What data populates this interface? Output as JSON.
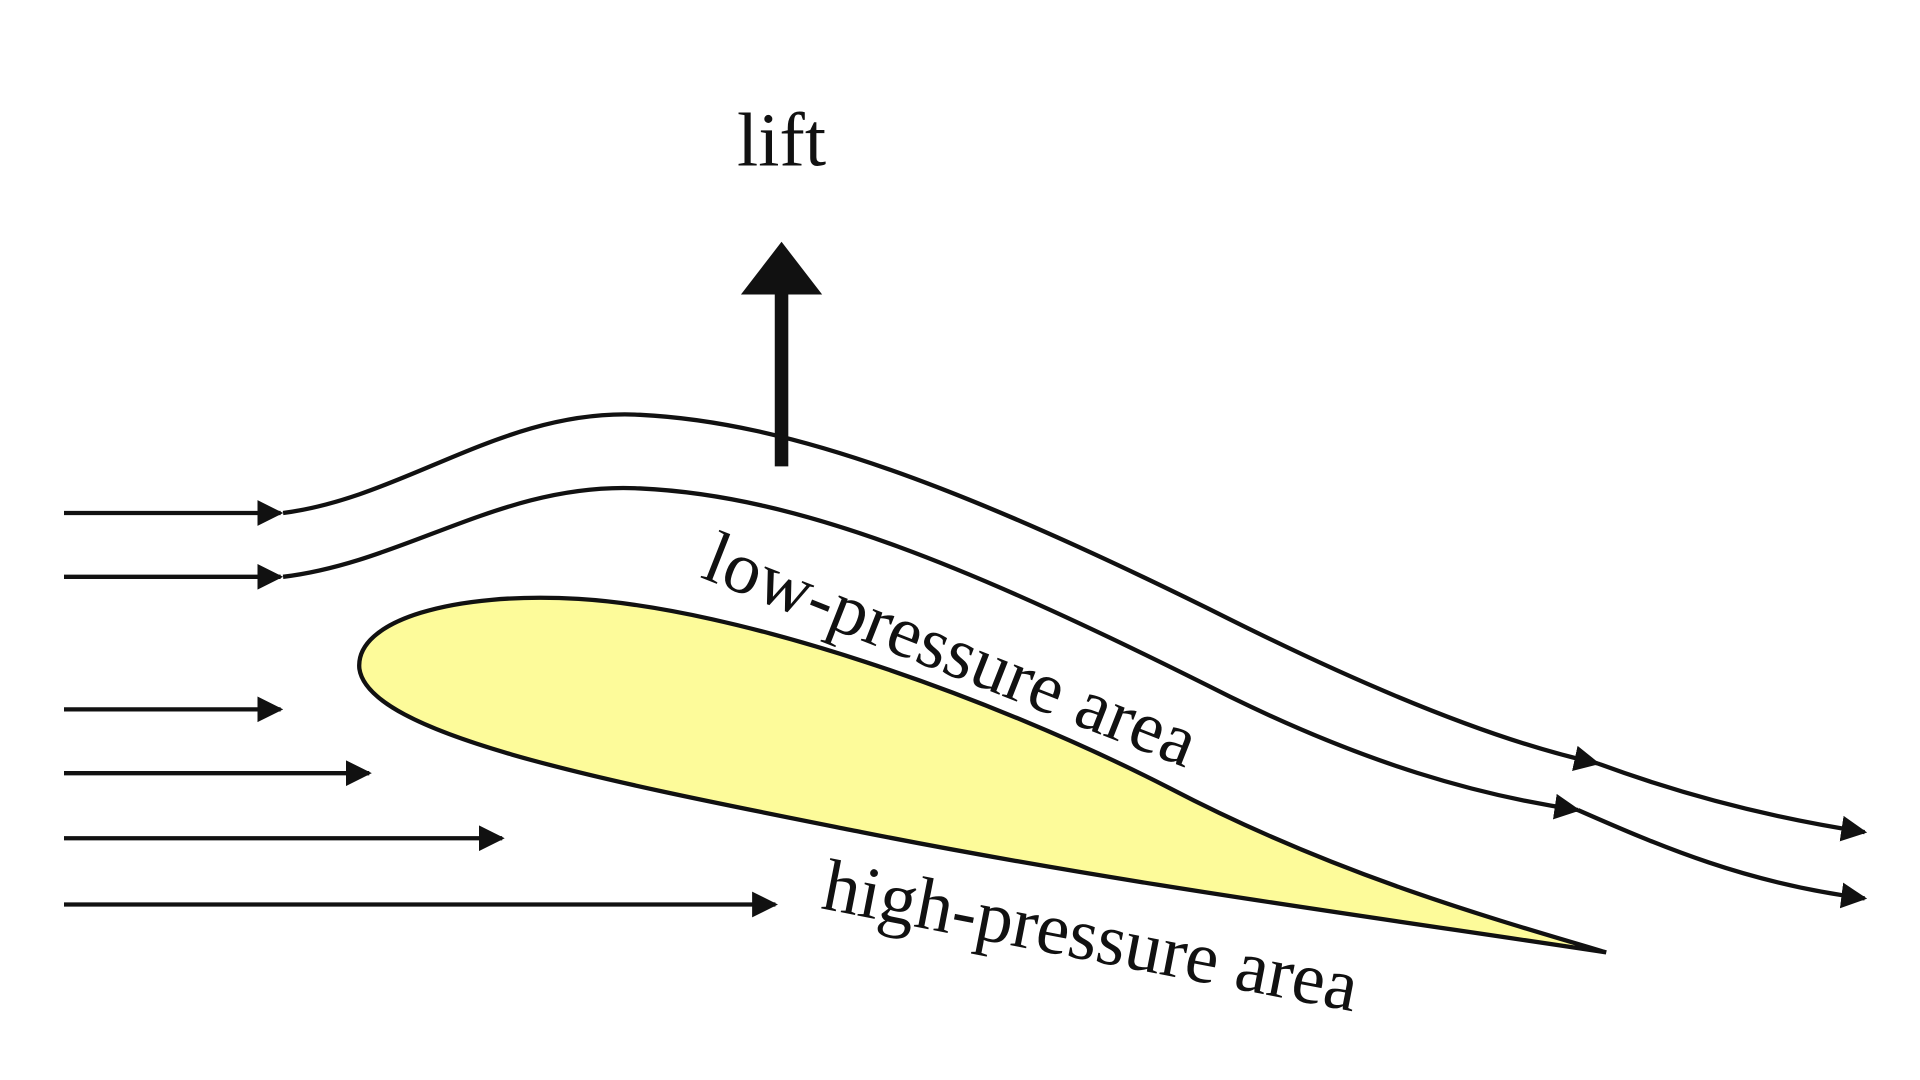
{
  "labels": {
    "lift": "lift",
    "low_pressure": "low-pressure area",
    "high_pressure": "high-pressure area"
  },
  "colors": {
    "airfoil_fill": "#fdfb9a",
    "stroke": "#111111",
    "background": "#ffffff"
  }
}
